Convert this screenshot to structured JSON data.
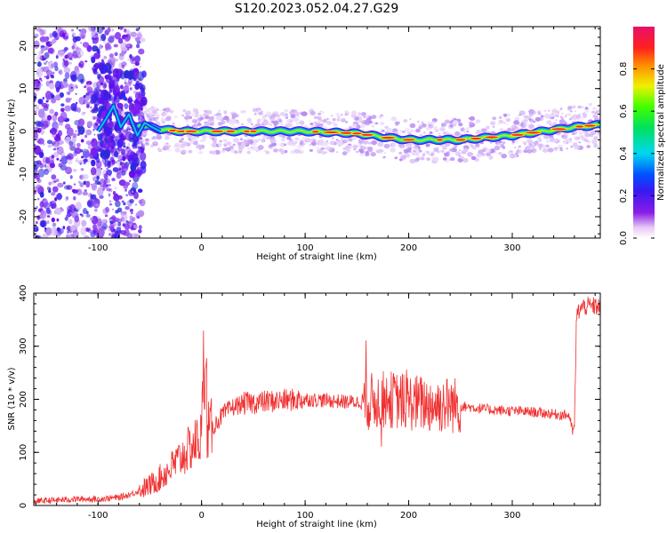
{
  "figure_title": "S120.2023.052.04.27.G29",
  "chart_data": [
    {
      "type": "heatmap",
      "title": "",
      "xlabel": "Height of straight line (km)",
      "ylabel": "Frequency (Hz)",
      "xlim": [
        -162,
        385
      ],
      "ylim": [
        -25,
        24.5
      ],
      "xticks": [
        -100,
        0,
        100,
        200,
        300
      ],
      "yticks": [
        -20,
        -10,
        0,
        10,
        20
      ],
      "colorbar": {
        "label": "Normalized spectral amplitude",
        "range": [
          0,
          1
        ],
        "ticks": [
          0.0,
          0.2,
          0.4,
          0.6,
          0.8
        ],
        "colormap": "rainbow (white-violet-blue-cyan-green-yellow-red-magenta)"
      },
      "ridge": {
        "description": "narrow high-amplitude band near 0 Hz from about -60 km to 385 km; scattered noise below -60 km",
        "x": [
          -60,
          -40,
          -20,
          0,
          50,
          100,
          150,
          180,
          200,
          250,
          300,
          330,
          360,
          385
        ],
        "freq_hz": [
          1.5,
          0.5,
          0.0,
          0.0,
          0.0,
          0.0,
          -0.5,
          -1.5,
          -2.0,
          -2.0,
          -1.0,
          0.0,
          1.0,
          1.5
        ]
      }
    },
    {
      "type": "line",
      "title": "",
      "xlabel": "Height of straight line (km)",
      "ylabel": "SNR (10 * v/v)",
      "xlim": [
        -162,
        385
      ],
      "ylim": [
        0,
        400
      ],
      "xticks": [
        -100,
        0,
        100,
        200,
        300
      ],
      "yticks": [
        0,
        100,
        200,
        300,
        400
      ],
      "color": "#f03030",
      "series": [
        {
          "x": [
            -162,
            -140,
            -120,
            -100,
            -80,
            -70,
            -60,
            -50,
            -40,
            -30,
            -20,
            -10,
            0,
            2,
            4,
            6,
            10,
            20,
            30,
            40,
            60,
            80,
            100,
            120,
            140,
            160,
            180,
            200,
            220,
            240,
            260,
            280,
            300,
            320,
            340,
            355,
            358,
            360,
            362,
            365,
            370,
            385
          ],
          "y": [
            8,
            10,
            12,
            12,
            15,
            20,
            28,
            38,
            52,
            70,
            90,
            110,
            130,
            270,
            150,
            140,
            145,
            170,
            185,
            192,
            195,
            198,
            200,
            198,
            195,
            195,
            200,
            195,
            190,
            190,
            185,
            180,
            178,
            176,
            172,
            170,
            140,
            145,
            355,
            370,
            375,
            375
          ]
        }
      ]
    }
  ]
}
